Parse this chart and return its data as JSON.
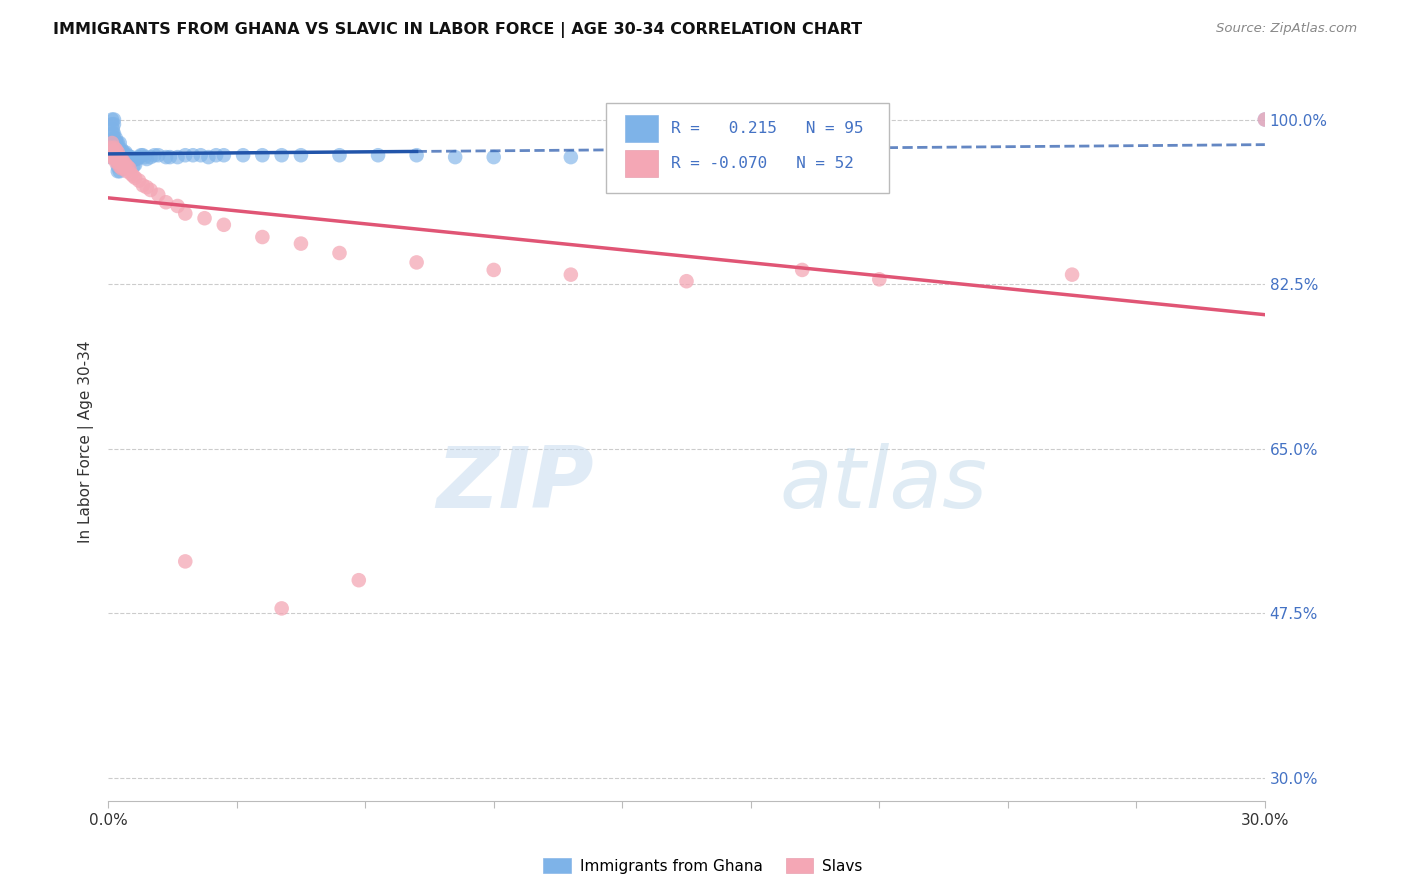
{
  "title": "IMMIGRANTS FROM GHANA VS SLAVIC IN LABOR FORCE | AGE 30-34 CORRELATION CHART",
  "source": "Source: ZipAtlas.com",
  "ylabel": "In Labor Force | Age 30-34",
  "ytick_values": [
    1.0,
    0.825,
    0.65,
    0.475,
    0.3
  ],
  "ytick_labels": [
    "100.0%",
    "82.5%",
    "65.0%",
    "47.5%",
    "30.0%"
  ],
  "watermark_zip": "ZIP",
  "watermark_atlas": "atlas",
  "legend_ghana_r": "0.215",
  "legend_ghana_n": "95",
  "legend_slavs_r": "-0.070",
  "legend_slavs_n": "52",
  "ghana_color": "#7EB3E8",
  "slavs_color": "#F4A7B5",
  "trendline_ghana_color": "#2255AA",
  "trendline_slavs_color": "#E05575",
  "xmin": 0.0,
  "xmax": 0.3,
  "ymin": 0.275,
  "ymax": 1.04,
  "ghana_scatter_x": [
    0.0005,
    0.0008,
    0.001,
    0.001,
    0.0012,
    0.0012,
    0.0013,
    0.0015,
    0.0015,
    0.0015,
    0.0015,
    0.0015,
    0.0018,
    0.0018,
    0.0018,
    0.002,
    0.002,
    0.002,
    0.002,
    0.0022,
    0.0022,
    0.0022,
    0.0025,
    0.0025,
    0.0025,
    0.0025,
    0.0025,
    0.0025,
    0.0028,
    0.0028,
    0.0028,
    0.003,
    0.003,
    0.003,
    0.003,
    0.003,
    0.003,
    0.0032,
    0.0032,
    0.0035,
    0.0035,
    0.0035,
    0.0035,
    0.0038,
    0.0038,
    0.004,
    0.004,
    0.004,
    0.0042,
    0.0045,
    0.0045,
    0.0048,
    0.005,
    0.005,
    0.0052,
    0.0055,
    0.0055,
    0.0058,
    0.006,
    0.006,
    0.0065,
    0.0065,
    0.007,
    0.007,
    0.0075,
    0.008,
    0.0085,
    0.009,
    0.0095,
    0.01,
    0.011,
    0.012,
    0.013,
    0.015,
    0.016,
    0.018,
    0.02,
    0.022,
    0.024,
    0.026,
    0.028,
    0.03,
    0.035,
    0.04,
    0.045,
    0.05,
    0.06,
    0.07,
    0.08,
    0.09,
    0.1,
    0.12,
    0.15,
    0.2,
    0.3
  ],
  "ghana_scatter_y": [
    0.96,
    0.975,
    1.0,
    0.995,
    0.985,
    0.99,
    0.975,
    1.0,
    0.995,
    0.985,
    0.98,
    0.965,
    0.975,
    0.97,
    0.96,
    0.98,
    0.975,
    0.97,
    0.965,
    0.975,
    0.97,
    0.96,
    0.975,
    0.965,
    0.96,
    0.955,
    0.95,
    0.945,
    0.968,
    0.962,
    0.955,
    0.975,
    0.968,
    0.962,
    0.958,
    0.95,
    0.945,
    0.96,
    0.955,
    0.968,
    0.962,
    0.955,
    0.948,
    0.96,
    0.955,
    0.965,
    0.958,
    0.95,
    0.958,
    0.965,
    0.958,
    0.96,
    0.962,
    0.955,
    0.958,
    0.96,
    0.955,
    0.958,
    0.96,
    0.955,
    0.958,
    0.95,
    0.958,
    0.952,
    0.958,
    0.96,
    0.962,
    0.962,
    0.96,
    0.958,
    0.96,
    0.962,
    0.962,
    0.96,
    0.96,
    0.96,
    0.962,
    0.962,
    0.962,
    0.96,
    0.962,
    0.962,
    0.962,
    0.962,
    0.962,
    0.962,
    0.962,
    0.962,
    0.962,
    0.96,
    0.96,
    0.96,
    0.96,
    0.96,
    1.0
  ],
  "slavs_scatter_x": [
    0.0005,
    0.0008,
    0.001,
    0.0012,
    0.0015,
    0.0015,
    0.0018,
    0.002,
    0.002,
    0.0022,
    0.0025,
    0.0025,
    0.0028,
    0.003,
    0.003,
    0.0032,
    0.0035,
    0.0035,
    0.0038,
    0.004,
    0.0042,
    0.0045,
    0.0048,
    0.005,
    0.0055,
    0.006,
    0.0065,
    0.007,
    0.008,
    0.009,
    0.01,
    0.011,
    0.013,
    0.015,
    0.018,
    0.02,
    0.025,
    0.03,
    0.04,
    0.05,
    0.06,
    0.08,
    0.1,
    0.12,
    0.15,
    0.2,
    0.25,
    0.18,
    0.065,
    0.045,
    0.02,
    0.3
  ],
  "slavs_scatter_y": [
    0.97,
    0.96,
    0.975,
    0.965,
    0.97,
    0.96,
    0.958,
    0.968,
    0.955,
    0.96,
    0.965,
    0.955,
    0.958,
    0.96,
    0.95,
    0.955,
    0.958,
    0.948,
    0.95,
    0.955,
    0.948,
    0.952,
    0.945,
    0.95,
    0.948,
    0.942,
    0.94,
    0.938,
    0.935,
    0.93,
    0.928,
    0.925,
    0.92,
    0.912,
    0.908,
    0.9,
    0.895,
    0.888,
    0.875,
    0.868,
    0.858,
    0.848,
    0.84,
    0.835,
    0.828,
    0.83,
    0.835,
    0.84,
    0.51,
    0.48,
    0.53,
    1.0
  ]
}
